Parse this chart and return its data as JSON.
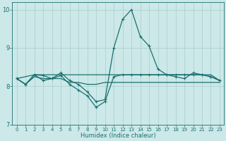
{
  "background_color": "#cce8e8",
  "grid_color": "#aacccc",
  "line_color": "#1a7070",
  "xlabel": "Humidex (Indice chaleur)",
  "xlim": [
    -0.5,
    23.5
  ],
  "ylim": [
    7,
    10.2
  ],
  "yticks": [
    7,
    8,
    9,
    10
  ],
  "xticks": [
    0,
    1,
    2,
    3,
    4,
    5,
    6,
    7,
    8,
    9,
    10,
    11,
    12,
    13,
    14,
    15,
    16,
    17,
    18,
    19,
    20,
    21,
    22,
    23
  ],
  "series": [
    {
      "x": [
        0,
        1,
        2,
        3,
        4,
        5,
        6,
        7,
        8,
        9,
        10,
        11,
        12,
        13,
        14,
        15,
        16,
        17,
        18,
        19,
        20,
        21,
        22,
        23
      ],
      "y": [
        8.2,
        8.05,
        8.3,
        8.28,
        8.2,
        8.35,
        8.15,
        8.05,
        7.85,
        7.6,
        7.65,
        9.0,
        9.75,
        10.0,
        9.3,
        9.05,
        8.45,
        8.3,
        8.25,
        8.2,
        8.35,
        8.3,
        8.25,
        8.15
      ],
      "marker": "+",
      "markersize": 3.5,
      "lw": 0.9
    },
    {
      "x": [
        0,
        2,
        3,
        4,
        5,
        6,
        7,
        8,
        9,
        10,
        11,
        12,
        13,
        14,
        15,
        16,
        17,
        18,
        19,
        20,
        21,
        22,
        23
      ],
      "y": [
        8.2,
        8.3,
        8.3,
        8.3,
        8.3,
        8.3,
        8.3,
        8.3,
        8.3,
        8.3,
        8.3,
        8.3,
        8.3,
        8.3,
        8.3,
        8.3,
        8.3,
        8.3,
        8.3,
        8.3,
        8.3,
        8.3,
        8.15
      ],
      "marker": null,
      "markersize": 0,
      "lw": 0.9
    },
    {
      "x": [
        0,
        1,
        2,
        3,
        4,
        5,
        6,
        7,
        8,
        9,
        10,
        11,
        12,
        13,
        14,
        15,
        16,
        17,
        18,
        19,
        20,
        21,
        22,
        23
      ],
      "y": [
        8.2,
        8.05,
        8.25,
        8.2,
        8.2,
        8.2,
        8.1,
        8.1,
        8.05,
        8.05,
        8.1,
        8.1,
        8.1,
        8.1,
        8.1,
        8.1,
        8.1,
        8.1,
        8.1,
        8.1,
        8.1,
        8.1,
        8.1,
        8.1
      ],
      "marker": null,
      "markersize": 0,
      "lw": 0.9
    },
    {
      "x": [
        0,
        1,
        2,
        3,
        4,
        5,
        6,
        7,
        8,
        9,
        10,
        11,
        12,
        13,
        14,
        15,
        16,
        17,
        18,
        19,
        20,
        21,
        22,
        23
      ],
      "y": [
        8.2,
        8.05,
        8.3,
        8.15,
        8.2,
        8.28,
        8.05,
        7.9,
        7.75,
        7.45,
        7.6,
        8.25,
        8.3,
        8.3,
        8.3,
        8.3,
        8.3,
        8.3,
        8.3,
        8.3,
        8.3,
        8.3,
        8.25,
        8.15
      ],
      "marker": "+",
      "markersize": 3.0,
      "lw": 0.9
    }
  ]
}
